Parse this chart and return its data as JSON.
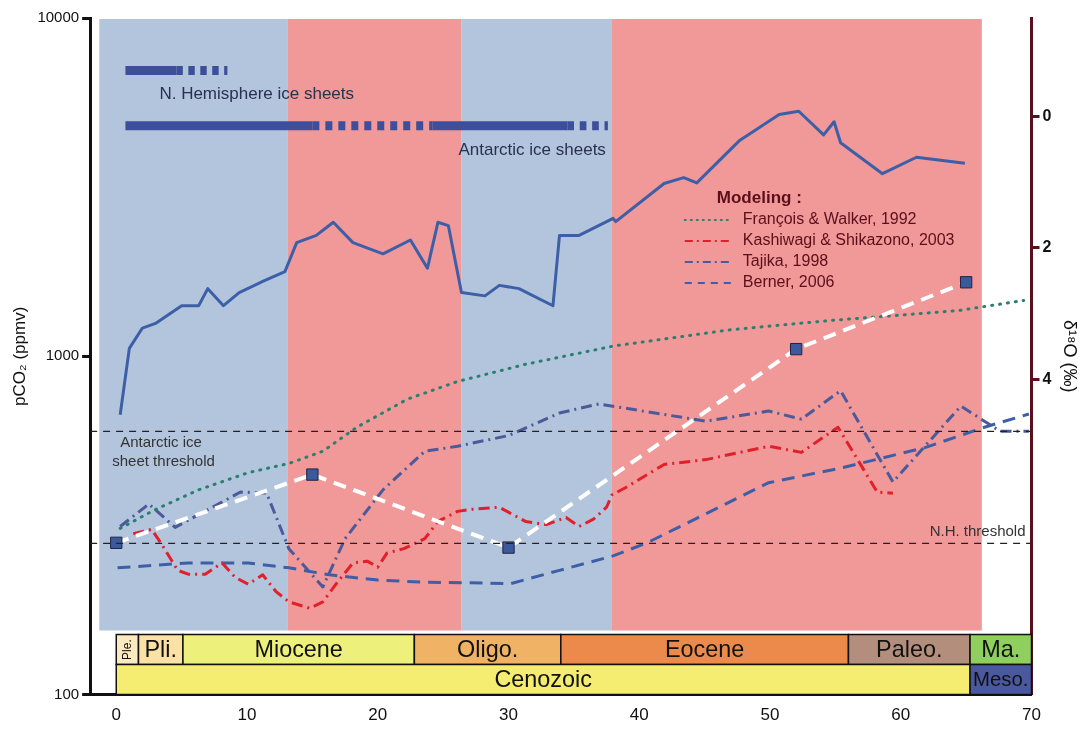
{
  "chart_data": {
    "type": "line",
    "ylabel": "pCO₂ (ppmv)",
    "y2label": "δ¹⁸O (‰)",
    "legend_title": "Modeling :",
    "legend": "top right",
    "grid": false,
    "log": "y",
    "xlim": [
      -2,
      70
    ],
    "xticks": [
      0,
      10,
      20,
      30,
      40,
      50,
      60,
      70
    ],
    "ylim": [
      100,
      10000
    ],
    "yticks": [
      100,
      1000,
      10000
    ],
    "y2lim": [
      8.8,
      -1.5
    ],
    "y2ticks": [
      0,
      2,
      4
    ],
    "bands": [
      {
        "axis": "x",
        "from": -1.3,
        "to": 13.1,
        "color": "#96aed0"
      },
      {
        "axis": "x",
        "from": 13.1,
        "to": 26.4,
        "color": "#ec7070"
      },
      {
        "axis": "x",
        "from": 26.4,
        "to": 37.9,
        "color": "#96aed0"
      },
      {
        "axis": "x",
        "from": 37.9,
        "to": 66.2,
        "color": "#ec7070"
      },
      {
        "axis": "x",
        "from": 0,
        "to": 1.7,
        "label": "Ple.",
        "color": "#fbe9c0"
      },
      {
        "axis": "x",
        "from": 1.7,
        "to": 5.1,
        "label": "Pli.",
        "color": "#fbe1a4"
      },
      {
        "axis": "x",
        "from": 5.1,
        "to": 22.8,
        "label": "Miocene",
        "color": "#eef07c"
      },
      {
        "axis": "x",
        "from": 22.8,
        "to": 34,
        "label": "Oligo.",
        "color": "#f0b264"
      },
      {
        "axis": "x",
        "from": 34,
        "to": 56,
        "label": "Eocene",
        "color": "#ec8a4c"
      },
      {
        "axis": "x",
        "from": 56,
        "to": 65.3,
        "label": "Paleo.",
        "color": "#b48e7c"
      },
      {
        "axis": "x",
        "from": 65.3,
        "to": 70,
        "label": "Ma.",
        "color": "#8ecf5e"
      },
      {
        "axis": "x",
        "from": 0,
        "to": 65.3,
        "label": "Cenozoic",
        "color": "#f5ec72"
      },
      {
        "axis": "x",
        "from": 65.3,
        "to": 70,
        "label": "Meso.",
        "color": "#4a58a0"
      }
    ],
    "ref_lines": [
      {
        "axis": "y",
        "value": 600,
        "label": "Antarctic ice sheet threshold",
        "color": "#222222",
        "line_style": "dashed"
      },
      {
        "axis": "y",
        "value": 280,
        "label": "N.H. threshold",
        "color": "#222222",
        "line_style": "dashed"
      }
    ],
    "annotations": [
      "N. Hemisphere ice sheets",
      "Antarctic ice sheets"
    ],
    "series": [
      {
        "type": "line",
        "x": [
          0,
          15,
          30,
          52,
          65
        ],
        "values": [
          281,
          447,
          272,
          1050,
          1655
        ],
        "color": "#ffffff",
        "colors": [
          "#3a5a9c",
          "#3a5a9c",
          "#3a5a9c",
          "#3a5a9c",
          "#3a5a9c"
        ],
        "marker": "square",
        "line_style": "dashed"
      },
      {
        "type": "line",
        "x": [
          0.7,
          4.6
        ],
        "values": [
          7000,
          7000
        ],
        "color": "#3d4f9a",
        "line_style": "solid"
      },
      {
        "type": "line",
        "x": [
          4.6,
          8.5
        ],
        "values": [
          7000,
          7000
        ],
        "color": "#3d4f9a",
        "line_style": "dashed"
      },
      {
        "type": "line",
        "x": [
          0.7,
          15.0
        ],
        "values": [
          4800,
          4800
        ],
        "color": "#3d4f9a",
        "line_style": "solid"
      },
      {
        "type": "line",
        "x": [
          15.0,
          24.2
        ],
        "values": [
          4800,
          4800
        ],
        "color": "#3d4f9a",
        "line_style": "dashed"
      },
      {
        "type": "line",
        "x": [
          24.2,
          34.5
        ],
        "values": [
          4800,
          4800
        ],
        "color": "#3d4f9a",
        "line_style": "solid"
      },
      {
        "type": "line",
        "x": [
          34.5,
          37.6
        ],
        "values": [
          4800,
          4800
        ],
        "color": "#3d4f9a",
        "line_style": "dashed"
      },
      {
        "type": "line",
        "axis": "y2",
        "color": "#3d5fa8",
        "line_style": "solid",
        "x": [
          0.3,
          1,
          2,
          3,
          5,
          6.3,
          7,
          8.2,
          9.4,
          11.2,
          12.9,
          13.8,
          15.3,
          16.6,
          18.1,
          20.4,
          22.5,
          23.8,
          24.6,
          25.4,
          26.4,
          28.2,
          29.3,
          30.8,
          33.4,
          33.9,
          35.4,
          38.0,
          38.2,
          41.9,
          43.4,
          44.4,
          47.7,
          50.7,
          52.2,
          54.1,
          54.9,
          55.4,
          58.6,
          61.2,
          64.9
        ],
        "values": [
          4.54,
          3.53,
          3.22,
          3.15,
          2.88,
          2.88,
          2.62,
          2.88,
          2.68,
          2.51,
          2.36,
          1.92,
          1.81,
          1.61,
          1.92,
          2.09,
          1.88,
          2.31,
          1.61,
          1.66,
          2.68,
          2.73,
          2.57,
          2.62,
          2.88,
          1.81,
          1.81,
          1.55,
          1.6,
          1.02,
          0.93,
          1.01,
          0.36,
          -0.03,
          -0.08,
          0.28,
          0.08,
          0.4,
          0.87,
          0.62,
          0.71
        ]
      },
      {
        "type": "line",
        "name": "François & Walker, 1992",
        "color": "#2a7f6f",
        "line_style": "dotted",
        "x": [
          0.3,
          2.9,
          6.3,
          10.1,
          13.2,
          15.8,
          18.4,
          22.3,
          26.1,
          31.3,
          38,
          46.9,
          54.4,
          64.4,
          69.4
        ],
        "values": [
          310,
          351,
          403,
          453,
          482,
          524,
          617,
          748,
          842,
          947,
          1072,
          1197,
          1274,
          1365,
          1463
        ]
      },
      {
        "type": "line",
        "name": "Kashiwagi & Shikazono, 2003",
        "color": "#e0202a",
        "line_style": "dashdot",
        "x": [
          1.3,
          2.7,
          3.4,
          4.7,
          5.5,
          6.8,
          8.1,
          9.1,
          10.1,
          11.2,
          12.2,
          13.2,
          14.8,
          15.8,
          16.8,
          18.1,
          19.2,
          20,
          20.7,
          22,
          23.6,
          24.6,
          26.1,
          27.2,
          29.3,
          31.3,
          32.9,
          34.4,
          35.4,
          36.5,
          37.5,
          37.9,
          38.9,
          41.9,
          45.1,
          49.9,
          52.4,
          55.2,
          58.2,
          59.4
        ],
        "values": [
          299,
          308,
          281,
          233,
          227,
          227,
          245,
          222,
          212,
          226,
          202,
          188,
          180,
          188,
          212,
          245,
          248,
          238,
          262,
          270,
          289,
          325,
          348,
          353,
          358,
          325,
          318,
          334,
          314,
          330,
          358,
          389,
          408,
          479,
          495,
          542,
          520,
          617,
          397,
          394
        ]
      },
      {
        "type": "line",
        "name": "Tajika, 1998",
        "color": "#4a5a9a",
        "line_style": "dashdot",
        "x": [
          0.3,
          2.5,
          4.5,
          9.5,
          11.5,
          13.2,
          15.8,
          17.5,
          20.4,
          23.6,
          26.1,
          30,
          33.9,
          36.9,
          45.1,
          49.9,
          52.4,
          55.4,
          59.4,
          64.6,
          67.6,
          69.8
        ],
        "values": [
          314,
          366,
          312,
          397,
          394,
          270,
          208,
          289,
          403,
          524,
          542,
          583,
          680,
          723,
          643,
          689,
          652,
          791,
          425,
          713,
          600,
          600
        ]
      },
      {
        "type": "line",
        "name": "Berner, 2006",
        "color": "#3d5fa8",
        "line_style": "dashed",
        "x": [
          0.1,
          5.5,
          10.1,
          13.2,
          16.3,
          20,
          23.6,
          30.2,
          33.9,
          38,
          40.6,
          49.9,
          55.6,
          61.9,
          66.4,
          69.8
        ],
        "values": [
          237,
          245,
          245,
          237,
          226,
          218,
          215,
          213,
          233,
          257,
          281,
          423,
          469,
          538,
          617,
          675
        ]
      }
    ]
  }
}
